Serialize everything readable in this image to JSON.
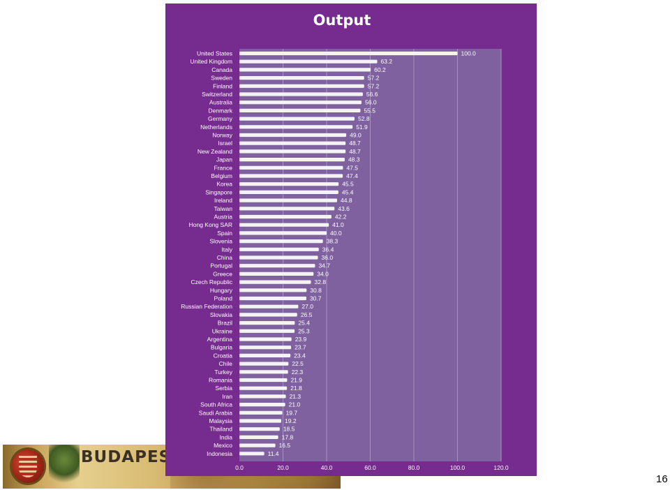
{
  "banner": {
    "text": "BUDAPEST"
  },
  "slide": {
    "page_number": "16"
  },
  "colors": {
    "panel": "#762b8e",
    "plot_area": "#7f61a0",
    "bar": "#f4f4f4",
    "gridline": "#a890c0"
  },
  "chart_data": {
    "type": "bar",
    "orientation": "horizontal",
    "title": "Output",
    "xlabel": "",
    "ylabel": "",
    "xlim": [
      0,
      120
    ],
    "xticks": [
      "0.0",
      "20.0",
      "40.0",
      "60.0",
      "80.0",
      "100.0",
      "120.0"
    ],
    "grid": true,
    "legend": "none",
    "categories": [
      "United States",
      "United Kingdom",
      "Canada",
      "Sweden",
      "Finland",
      "Switzerland",
      "Australia",
      "Denmark",
      "Germany",
      "Netherlands",
      "Norway",
      "Israel",
      "New Zealand",
      "Japan",
      "France",
      "Belgium",
      "Korea",
      "Singapore",
      "Ireland",
      "Taiwan",
      "Austria",
      "Hong Kong SAR",
      "Spain",
      "Slovenia",
      "Italy",
      "China",
      "Portugal",
      "Greece",
      "Czech Republic",
      "Hungary",
      "Poland",
      "Russian Federation",
      "Slovakia",
      "Brazil",
      "Ukraine",
      "Argentina",
      "Bulgaria",
      "Croatia",
      "Chile",
      "Turkey",
      "Romania",
      "Serbia",
      "Iran",
      "South Africa",
      "Saudi Arabia",
      "Malaysia",
      "Thailand",
      "India",
      "Mexico",
      "Indonesia"
    ],
    "values": [
      100.0,
      63.2,
      60.2,
      57.2,
      57.2,
      56.6,
      56.0,
      55.5,
      52.8,
      51.9,
      49.0,
      48.7,
      48.7,
      48.3,
      47.5,
      47.4,
      45.5,
      45.4,
      44.8,
      43.6,
      42.2,
      41.0,
      40.0,
      38.3,
      36.4,
      36.0,
      34.7,
      34.0,
      32.8,
      30.8,
      30.7,
      27.0,
      26.5,
      25.4,
      25.3,
      23.9,
      23.7,
      23.4,
      22.5,
      22.3,
      21.9,
      21.8,
      21.3,
      21.0,
      19.7,
      19.2,
      18.5,
      17.8,
      16.5,
      11.4
    ],
    "value_labels": [
      "100.0",
      "63.2",
      "60.2",
      "57.2",
      "57.2",
      "56.6",
      "56.0",
      "55.5",
      "52.8",
      "51.9",
      "49.0",
      "48.7",
      "48.7",
      "48.3",
      "47.5",
      "47.4",
      "45.5",
      "45.4",
      "44.8",
      "43.6",
      "42.2",
      "41.0",
      "40.0",
      "38.3",
      "36.4",
      "36.0",
      "34.7",
      "34.0",
      "32.8",
      "30.8",
      "30.7",
      "27.0",
      "26.5",
      "25.4",
      "25.3",
      "23.9",
      "23.7",
      "23.4",
      "22.5",
      "22.3",
      "21.9",
      "21.8",
      "21.3",
      "21.0",
      "19.7",
      "19.2",
      "18.5",
      "17.8",
      "16.5",
      "11.4"
    ]
  }
}
